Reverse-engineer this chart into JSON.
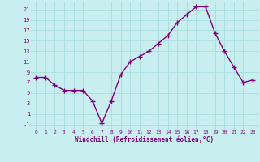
{
  "x": [
    0,
    1,
    2,
    3,
    4,
    5,
    6,
    7,
    8,
    9,
    10,
    11,
    12,
    13,
    14,
    15,
    16,
    17,
    18,
    19,
    20,
    21,
    22,
    23
  ],
  "y": [
    8,
    8,
    6.5,
    5.5,
    5.5,
    5.5,
    3.5,
    -0.8,
    3.5,
    8.5,
    11,
    12,
    13,
    14.5,
    16,
    18.5,
    20,
    21.5,
    21.5,
    16.5,
    13,
    10,
    7,
    7.5
  ],
  "line_color": "#800080",
  "marker": "+",
  "marker_size": 4,
  "marker_lw": 1.0,
  "bg_color": "#c8eef0",
  "grid_color": "#aadddd",
  "xlabel": "Windchill (Refroidissement éolien,°C)",
  "xlabel_color": "#800080",
  "tick_color": "#800080",
  "yticks": [
    -1,
    1,
    3,
    5,
    7,
    9,
    11,
    13,
    15,
    17,
    19,
    21
  ],
  "xticks": [
    0,
    1,
    2,
    3,
    4,
    5,
    6,
    7,
    8,
    9,
    10,
    11,
    12,
    13,
    14,
    15,
    16,
    17,
    18,
    19,
    20,
    21,
    22,
    23
  ],
  "ylim": [
    -2,
    22.5
  ],
  "xlim": [
    -0.5,
    23.5
  ],
  "line_width": 1.0
}
